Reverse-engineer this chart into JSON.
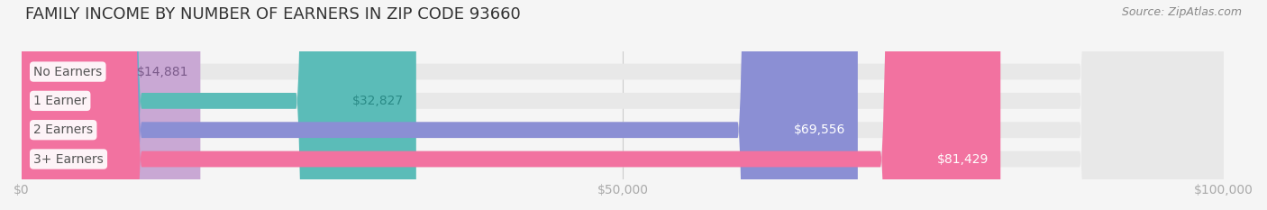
{
  "title": "FAMILY INCOME BY NUMBER OF EARNERS IN ZIP CODE 93660",
  "source": "Source: ZipAtlas.com",
  "categories": [
    "No Earners",
    "1 Earner",
    "2 Earners",
    "3+ Earners"
  ],
  "values": [
    14881,
    32827,
    69556,
    81429
  ],
  "labels": [
    "$14,881",
    "$32,827",
    "$69,556",
    "$81,429"
  ],
  "bar_colors": [
    "#c9a8d4",
    "#5bbcb8",
    "#8b8fd4",
    "#f272a0"
  ],
  "label_colors": [
    "#7a5a8a",
    "#2a8a86",
    "#ffffff",
    "#ffffff"
  ],
  "background_color": "#f5f5f5",
  "bar_bg_color": "#e8e8e8",
  "xlim": [
    0,
    100000
  ],
  "xticks": [
    0,
    50000,
    100000
  ],
  "xticklabels": [
    "$0",
    "$50,000",
    "$100,000"
  ],
  "title_fontsize": 13,
  "source_fontsize": 9,
  "tick_fontsize": 10,
  "bar_height": 0.55,
  "bar_label_fontsize": 10
}
